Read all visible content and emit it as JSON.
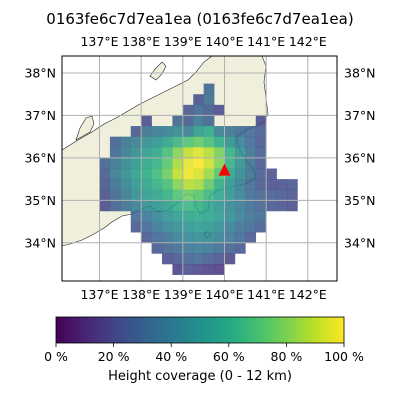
{
  "title": "0163fe6c7d7ea1ea (0163fe6c7d7ea1ea)",
  "map": {
    "lon_ticks": [
      "137°E",
      "138°E",
      "139°E",
      "140°E",
      "141°E",
      "142°E"
    ],
    "lat_ticks": [
      "38°N",
      "37°N",
      "36°N",
      "35°N",
      "34°N"
    ],
    "lon_range": [
      136.1,
      142.7
    ],
    "lat_range": [
      33.1,
      38.4
    ],
    "grid": true,
    "land_color": "#efefdc",
    "sea_color": "#ffffff",
    "marker": {
      "type": "triangle",
      "color": "#ff0000",
      "lon": 140.0,
      "lat": 35.7
    },
    "grid_cell_deg": 0.25,
    "heatmap_rows": [
      {
        "lat": 37.5,
        "lon_start": 139.5,
        "values": [
          0.3
        ]
      },
      {
        "lat": 37.25,
        "lon_start": 139.25,
        "values": [
          0.22,
          0.34
        ]
      },
      {
        "lat": 37.0,
        "lon_start": 139.0,
        "values": [
          0.24,
          0.3,
          0.26,
          0.2
        ]
      },
      {
        "lat": 36.75,
        "lon_start": 138.0,
        "values": [
          0.2,
          0,
          0,
          0.3,
          0.26,
          0.36,
          0.28,
          0,
          0,
          0,
          0,
          0.2
        ]
      },
      {
        "lat": 36.5,
        "lon_start": 137.75,
        "values": [
          0.24,
          0.34,
          0.38,
          0.4,
          0.44,
          0.4,
          0.52,
          0.58,
          0.4,
          0.36,
          0.32,
          0.3,
          0.26
        ]
      },
      {
        "lat": 36.25,
        "lon_start": 137.25,
        "values": [
          0.28,
          0.36,
          0.4,
          0.46,
          0.5,
          0.56,
          0.64,
          0.7,
          0.74,
          0.68,
          0.6,
          0.48,
          0.4,
          0.3,
          0.24
        ]
      },
      {
        "lat": 36.0,
        "lon_start": 137.25,
        "values": [
          0.3,
          0.38,
          0.46,
          0.54,
          0.58,
          0.68,
          0.8,
          0.9,
          0.95,
          0.88,
          0.78,
          0.62,
          0.48,
          0.34,
          0.26
        ]
      },
      {
        "lat": 35.75,
        "lon_start": 137.0,
        "values": [
          0.28,
          0.36,
          0.44,
          0.5,
          0.58,
          0.62,
          0.72,
          0.86,
          0.96,
          1.0,
          0.92,
          0.8,
          0.62,
          0.48,
          0.34,
          0.24
        ]
      },
      {
        "lat": 35.5,
        "lon_start": 137.0,
        "values": [
          0.26,
          0.38,
          0.46,
          0.54,
          0.6,
          0.66,
          0.76,
          0.9,
          0.98,
          0.94,
          0.84,
          0.7,
          0.56,
          0.44,
          0.34,
          0.26,
          0.22
        ]
      },
      {
        "lat": 35.25,
        "lon_start": 137.0,
        "values": [
          0.24,
          0.34,
          0.42,
          0.5,
          0.56,
          0.62,
          0.68,
          0.8,
          0.88,
          0.86,
          0.74,
          0.6,
          0.5,
          0.4,
          0.3,
          0.24,
          0.2,
          0.22,
          0.24
        ]
      },
      {
        "lat": 35.0,
        "lon_start": 137.0,
        "values": [
          0.22,
          0.3,
          0.38,
          0.46,
          0.52,
          0.56,
          0.62,
          0.7,
          0.76,
          0.72,
          0.64,
          0.56,
          0.48,
          0.4,
          0.32,
          0.28,
          0.26,
          0.24,
          0.22
        ]
      },
      {
        "lat": 34.75,
        "lon_start": 137.0,
        "values": [
          0.2,
          0.28,
          0.34,
          0.4,
          0.46,
          0.5,
          0.54,
          0.6,
          0.64,
          0.62,
          0.56,
          0.5,
          0.44,
          0.38,
          0.32,
          0.28,
          0.24,
          0.22,
          0.2
        ]
      },
      {
        "lat": 34.5,
        "lon_start": 137.75,
        "values": [
          0.3,
          0.36,
          0.42,
          0.48,
          0.52,
          0.56,
          0.58,
          0.56,
          0.52,
          0.46,
          0.4,
          0.34,
          0.3
        ]
      },
      {
        "lat": 34.25,
        "lon_start": 137.75,
        "values": [
          0.24,
          0.3,
          0.36,
          0.42,
          0.46,
          0.5,
          0.52,
          0.5,
          0.46,
          0.4,
          0.34,
          0.3,
          0.26
        ]
      },
      {
        "lat": 34.0,
        "lon_start": 138.0,
        "values": [
          0.24,
          0.3,
          0.34,
          0.4,
          0.44,
          0.46,
          0.44,
          0.4,
          0.36,
          0.3,
          0.24
        ]
      },
      {
        "lat": 33.75,
        "lon_start": 138.25,
        "values": [
          0.24,
          0.28,
          0.32,
          0.36,
          0.38,
          0.36,
          0.32,
          0.28,
          0.24
        ]
      },
      {
        "lat": 33.5,
        "lon_start": 138.5,
        "values": [
          0.2,
          0.24,
          0.28,
          0.3,
          0.26,
          0.22,
          0.18
        ]
      },
      {
        "lat": 33.25,
        "lon_start": 138.75,
        "values": [
          0.16,
          0.2,
          0.18,
          0.16,
          0.14
        ]
      }
    ]
  },
  "colorbar": {
    "ticks": [
      "0 %",
      "20 %",
      "40 %",
      "60 %",
      "80 %",
      "100 %"
    ],
    "label": "Height coverage (0 - 12 km)",
    "colormap": "viridis"
  }
}
